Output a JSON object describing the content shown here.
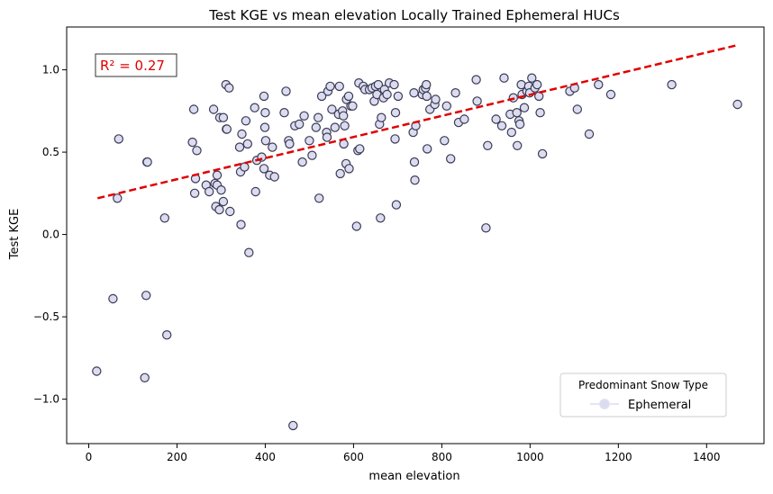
{
  "chart_data": {
    "type": "scatter",
    "title": "Test KGE vs mean elevation Locally Trained Ephemeral HUCs",
    "xlabel": "mean elevation",
    "ylabel": "Test KGE",
    "xlim": [
      -50,
      1530
    ],
    "ylim": [
      -1.27,
      1.26
    ],
    "xticks": [
      0,
      200,
      400,
      600,
      800,
      1000,
      1200,
      1400
    ],
    "yticks": [
      -1.0,
      -0.5,
      0.0,
      0.5,
      1.0
    ],
    "ytick_labels": [
      "−1.0",
      "−0.5",
      "0.0",
      "0.5",
      "1.0"
    ],
    "grid": false,
    "annotation": {
      "text": "R² = 0.27",
      "color": "#e00000"
    },
    "regression_line": {
      "x": [
        20,
        1470
      ],
      "y": [
        0.22,
        1.15
      ],
      "color": "#e00000",
      "style": "dashed"
    },
    "legend": {
      "title": "Predominant Snow Type",
      "entries": [
        "Ephemeral"
      ],
      "placement": "lower-right"
    },
    "marker": {
      "edge_color": "#3a3a55",
      "fill_color": "#dcdcf0"
    },
    "series": [
      {
        "name": "Ephemeral",
        "x": [
          18,
          55,
          65,
          68,
          127,
          130,
          132,
          133,
          177,
          172,
          235,
          238,
          240,
          242,
          245,
          266,
          273,
          283,
          286,
          288,
          291,
          291,
          296,
          297,
          300,
          305,
          305,
          311,
          312,
          313,
          318,
          320,
          342,
          344,
          345,
          347,
          353,
          356,
          360,
          363,
          376,
          378,
          381,
          392,
          397,
          397,
          399,
          400,
          401,
          410,
          416,
          421,
          443,
          447,
          453,
          455,
          463,
          467,
          477,
          484,
          488,
          500,
          506,
          515,
          520,
          522,
          528,
          539,
          540,
          542,
          547,
          551,
          558,
          566,
          568,
          570,
          575,
          577,
          578,
          580,
          583,
          584,
          589,
          590,
          594,
          598,
          607,
          610,
          612,
          614,
          622,
          626,
          636,
          642,
          647,
          650,
          653,
          656,
          659,
          661,
          663,
          668,
          670,
          676,
          681,
          692,
          694,
          695,
          697,
          701,
          735,
          737,
          738,
          739,
          741,
          756,
          758,
          763,
          765,
          766,
          767,
          773,
          784,
          786,
          806,
          811,
          820,
          831,
          838,
          851,
          878,
          880,
          900,
          904,
          923,
          936,
          941,
          955,
          958,
          962,
          970,
          971,
          975,
          977,
          980,
          982,
          987,
          993,
          997,
          999,
          1004,
          1011,
          1016,
          1020,
          1023,
          1028,
          1090,
          1101,
          1107,
          1134,
          1155,
          1183,
          1321,
          1470
        ],
        "y": [
          -0.83,
          -0.39,
          0.22,
          0.58,
          -0.87,
          -0.37,
          0.44,
          0.44,
          -0.61,
          0.1,
          0.56,
          0.76,
          0.25,
          0.34,
          0.51,
          0.3,
          0.26,
          0.76,
          0.31,
          0.17,
          0.36,
          0.3,
          0.15,
          0.71,
          0.27,
          0.71,
          0.2,
          0.91,
          0.64,
          0.64,
          0.89,
          0.14,
          0.53,
          0.38,
          0.06,
          0.61,
          0.41,
          0.69,
          0.55,
          -0.11,
          0.77,
          0.26,
          0.45,
          0.47,
          0.84,
          0.4,
          0.65,
          0.74,
          0.57,
          0.36,
          0.53,
          0.35,
          0.74,
          0.87,
          0.57,
          0.55,
          -1.16,
          0.66,
          0.67,
          0.44,
          0.72,
          0.57,
          0.48,
          0.65,
          0.71,
          0.22,
          0.84,
          0.62,
          0.59,
          0.87,
          0.9,
          0.76,
          0.65,
          0.73,
          0.9,
          0.37,
          0.75,
          0.72,
          0.55,
          0.66,
          0.43,
          0.82,
          0.84,
          0.4,
          0.78,
          0.78,
          0.05,
          0.51,
          0.92,
          0.52,
          0.9,
          0.88,
          0.88,
          0.89,
          0.81,
          0.9,
          0.85,
          0.91,
          0.67,
          0.1,
          0.71,
          0.83,
          0.88,
          0.85,
          0.92,
          0.91,
          0.58,
          0.74,
          0.18,
          0.84,
          0.62,
          0.86,
          0.44,
          0.33,
          0.66,
          0.85,
          0.88,
          0.89,
          0.91,
          0.84,
          0.52,
          0.76,
          0.79,
          0.82,
          0.57,
          0.78,
          0.46,
          0.86,
          0.68,
          0.7,
          0.94,
          0.81,
          0.04,
          0.54,
          0.7,
          0.66,
          0.95,
          0.73,
          0.62,
          0.83,
          0.74,
          0.54,
          0.69,
          0.67,
          0.91,
          0.85,
          0.77,
          0.87,
          0.9,
          0.86,
          0.95,
          0.89,
          0.91,
          0.84,
          0.74,
          0.49,
          0.87,
          0.89,
          0.76,
          0.61,
          0.91,
          0.85,
          0.91,
          0.79
        ]
      }
    ]
  }
}
